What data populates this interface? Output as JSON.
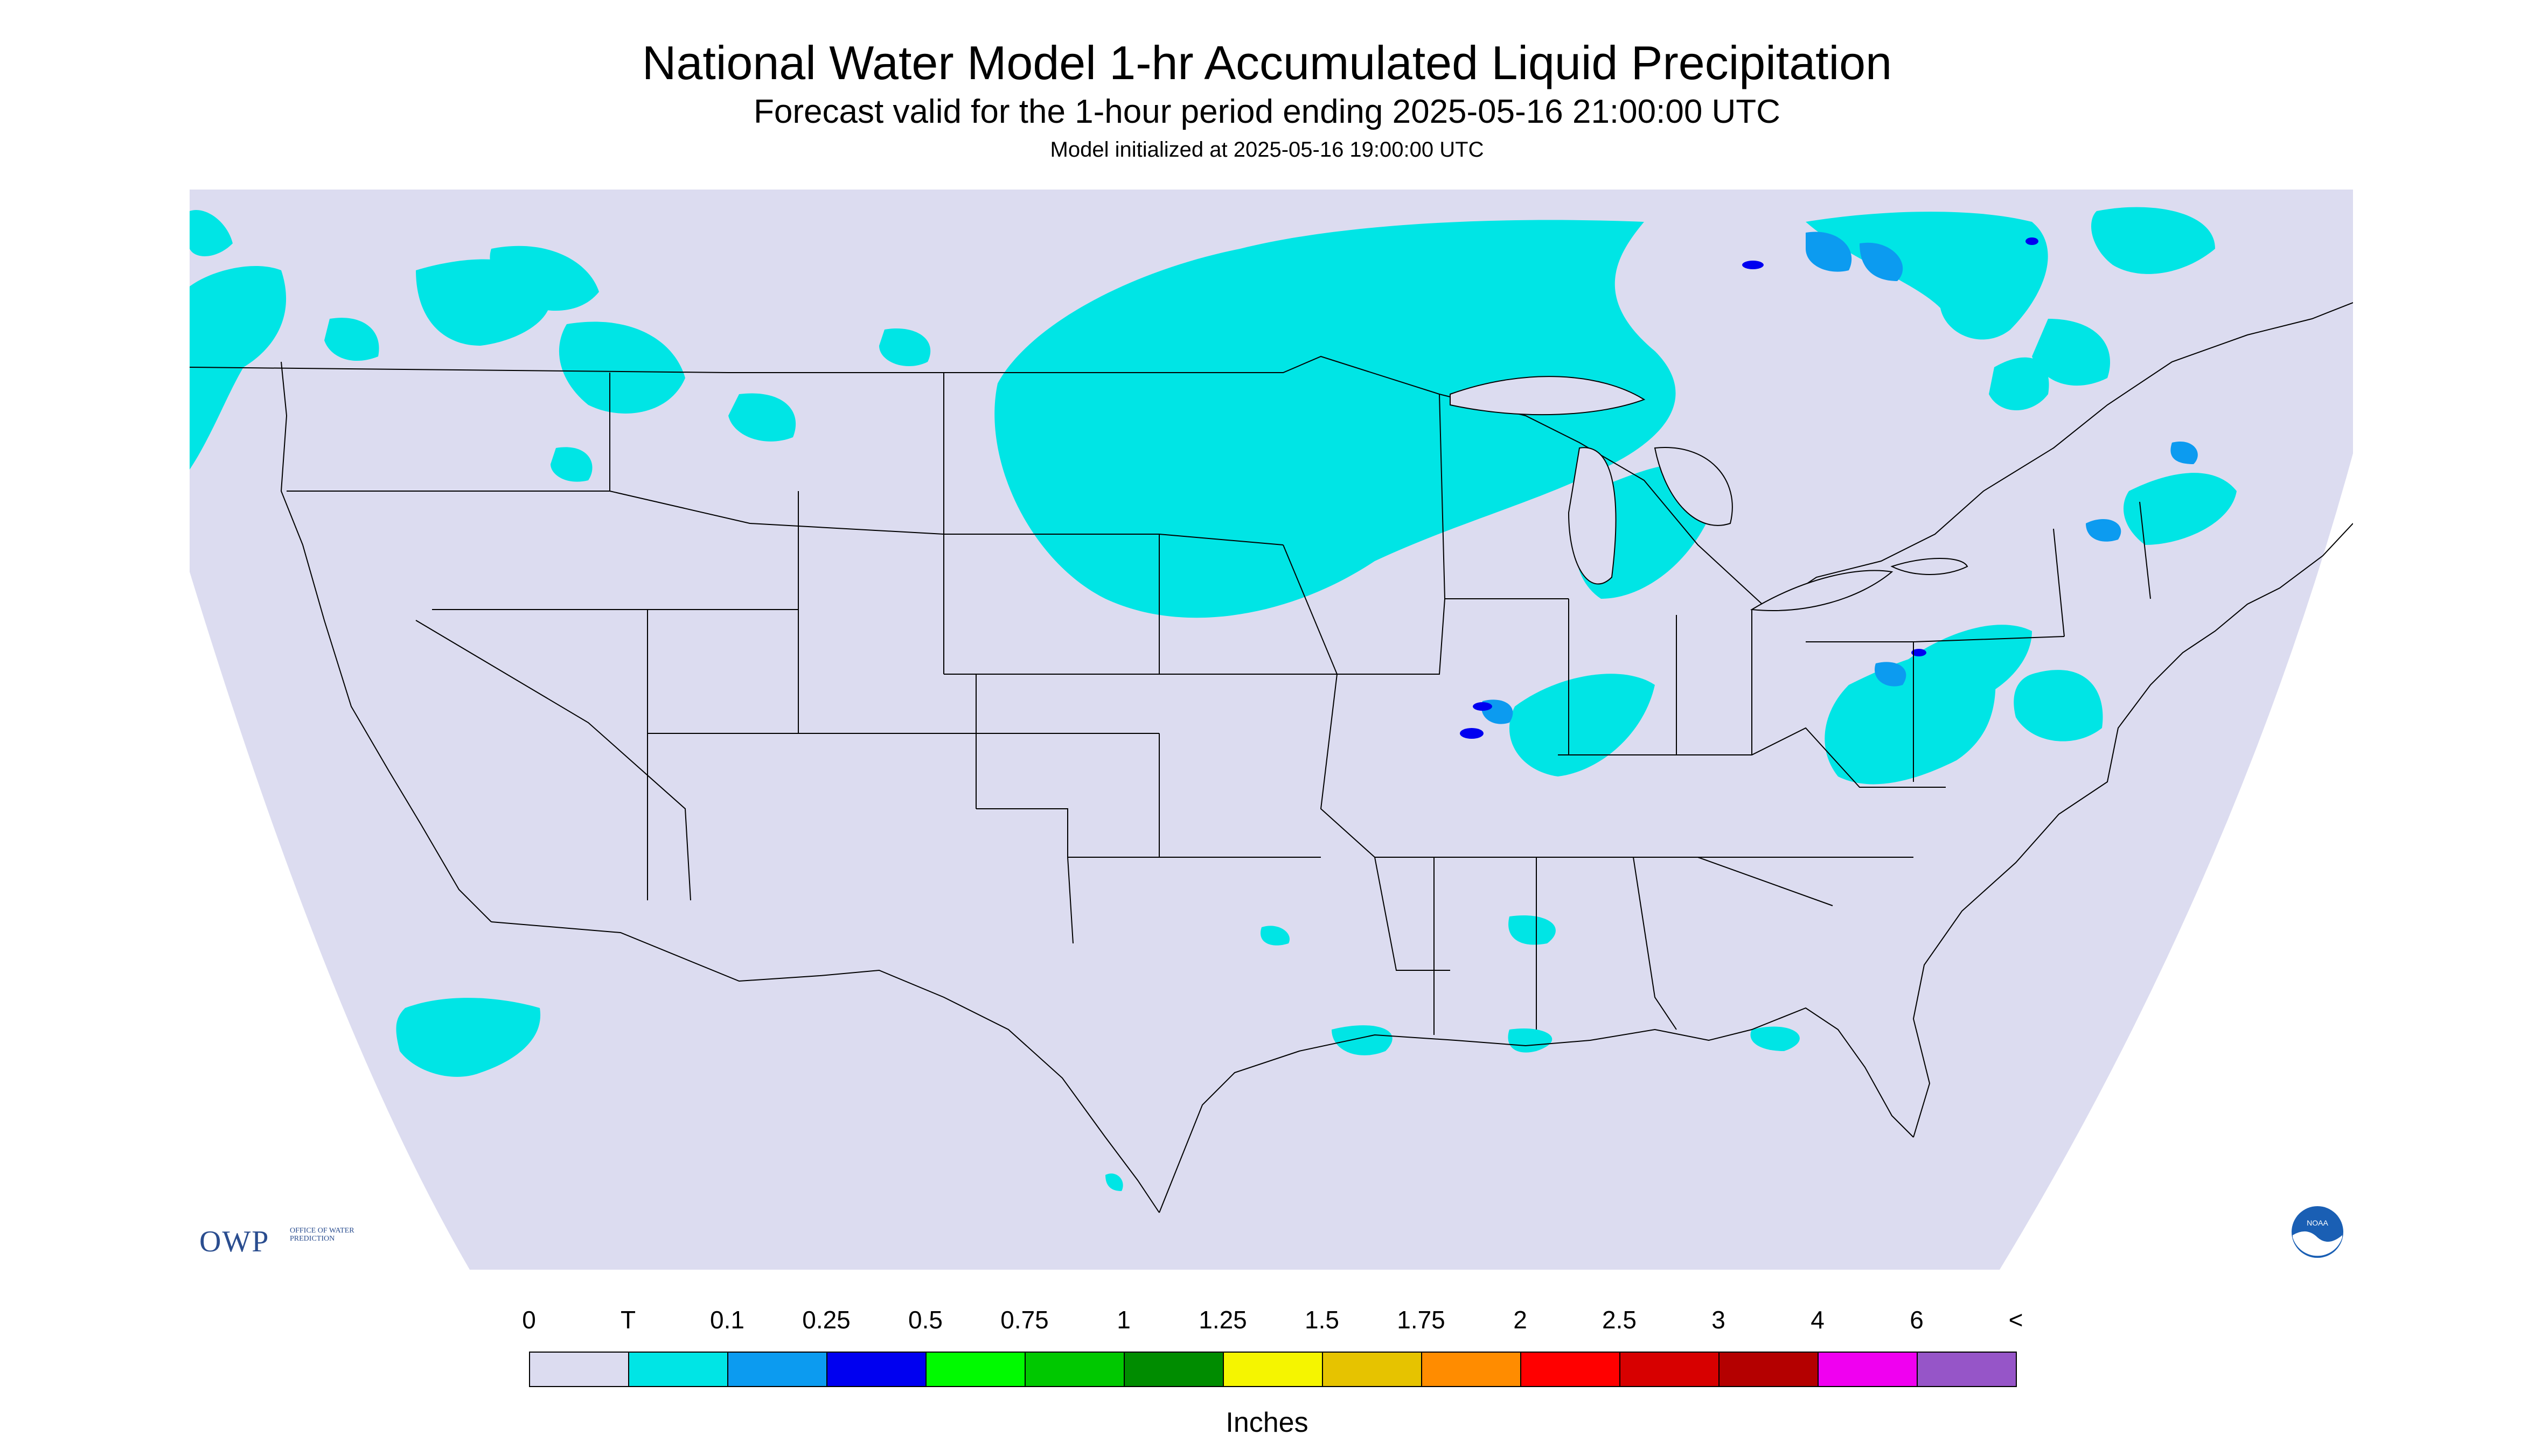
{
  "header": {
    "title": "National Water Model 1-hr Accumulated Liquid Precipitation",
    "subtitle": "Forecast valid for the 1-hour period ending 2025-05-16 21:00:00 UTC",
    "init": "Model initialized at 2025-05-16 19:00:00 UTC"
  },
  "logos": {
    "owp_main": "OWP",
    "owp_sub": "OFFICE OF WATER PREDICTION",
    "noaa": "NOAA"
  },
  "legend": {
    "unit_label": "Inches",
    "tick_labels": [
      "0",
      "T",
      "0.1",
      "0.25",
      "0.5",
      "0.75",
      "1",
      "1.25",
      "1.5",
      "1.75",
      "2",
      "2.5",
      "3",
      "4",
      "6",
      "<"
    ],
    "colors": [
      "#dcdcf0",
      "#00e5e5",
      "#0c9bf0",
      "#0000f0",
      "#00fa00",
      "#00c800",
      "#008c00",
      "#f5f500",
      "#e6c300",
      "#ff8c00",
      "#ff0000",
      "#d70000",
      "#b40000",
      "#f000f0",
      "#9655c8"
    ]
  },
  "map_colors": {
    "domain_fill": "#dcdcf0",
    "outside_fill": "#ffffff",
    "trace": "#00e5e5",
    "light_blue": "#0c9bf0",
    "dark_blue": "#0000f0",
    "border": "#000000"
  }
}
